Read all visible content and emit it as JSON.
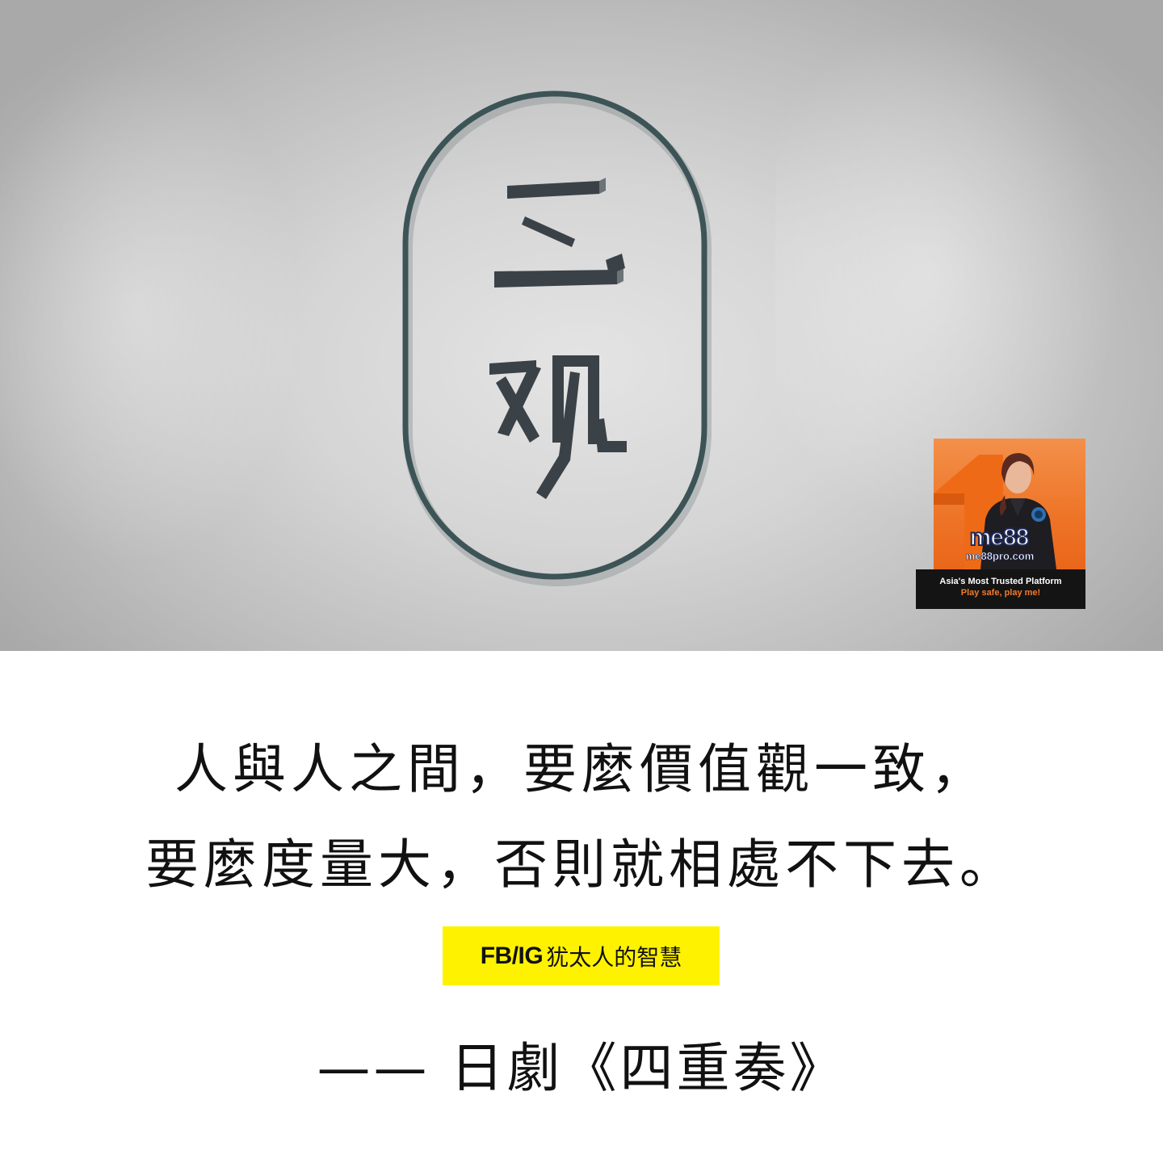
{
  "hero": {
    "logo_text": "三观",
    "logo_stroke_color": "#3d5457",
    "logo_glyph_color": "#3a4248"
  },
  "ad": {
    "brand": "me88",
    "domain": "me88pro.com",
    "tagline": "Asia's Most Trusted Platform",
    "slogan": "Play safe, play me!",
    "accent_color": "#ee7427"
  },
  "quote": {
    "line1": "人與人之間，要麼價值觀一致，",
    "line2": "要麼度量大，否則就相處不下去。"
  },
  "credit": {
    "tag": "FB/IG",
    "name": "犹太人的智慧",
    "background_color": "#fff200"
  },
  "source": {
    "text": "—— 日劇《四重奏》"
  }
}
